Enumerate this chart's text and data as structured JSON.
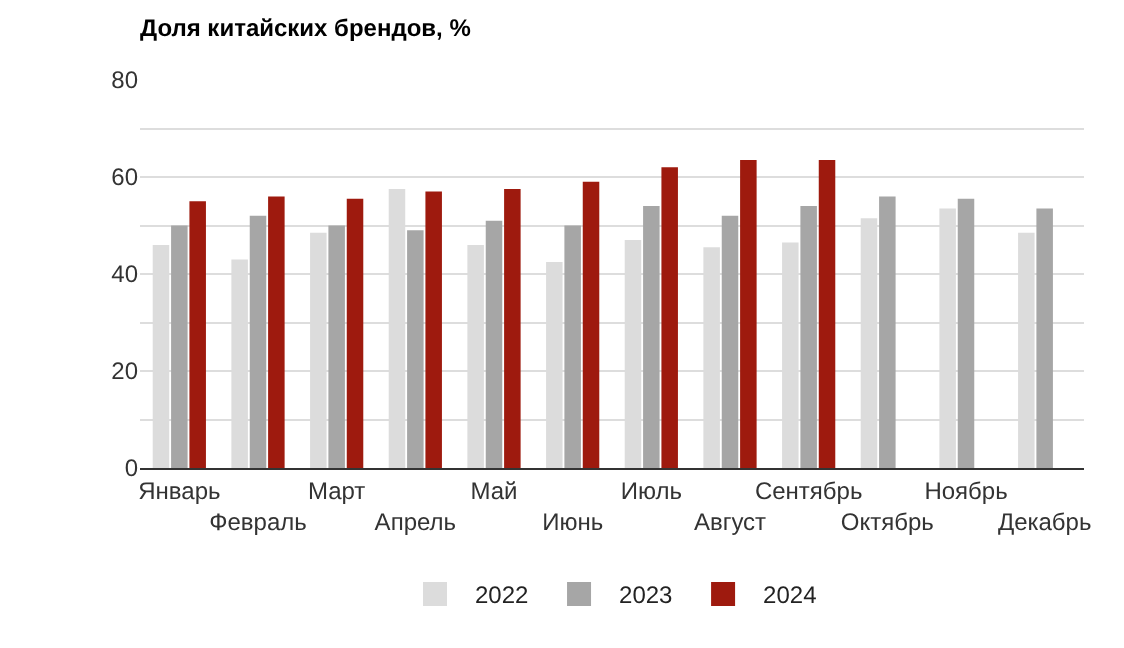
{
  "chart_data": {
    "type": "bar",
    "title": "Доля китайских брендов, %",
    "categories": [
      "Январь",
      "Февраль",
      "Март",
      "Апрель",
      "Май",
      "Июнь",
      "Июль",
      "Август",
      "Сентябрь",
      "Октябрь",
      "Ноябрь",
      "Декабрь"
    ],
    "series": [
      {
        "name": "2022",
        "color": "#dcdcdc",
        "values": [
          46,
          43,
          48.5,
          57.5,
          46,
          42.5,
          47,
          45.5,
          46.5,
          51.5,
          53.5,
          48.5
        ]
      },
      {
        "name": "2023",
        "color": "#a6a6a6",
        "values": [
          50,
          52,
          50,
          49,
          51,
          50,
          54,
          52,
          54,
          56,
          55.5,
          53.5
        ]
      },
      {
        "name": "2024",
        "color": "#9e1a0e",
        "values": [
          55,
          56,
          55.5,
          57,
          57.5,
          59,
          62,
          63.5,
          63.5,
          null,
          null,
          null
        ]
      }
    ],
    "ylim": [
      0,
      80
    ],
    "yticks": [
      0,
      {
        "value": 10,
        "label": null
      },
      20,
      {
        "value": 30,
        "label": null
      },
      40,
      {
        "value": 50,
        "label": null
      },
      60,
      {
        "value": 70,
        "label": null
      },
      80
    ],
    "grid": "y",
    "legend": "bottom"
  }
}
